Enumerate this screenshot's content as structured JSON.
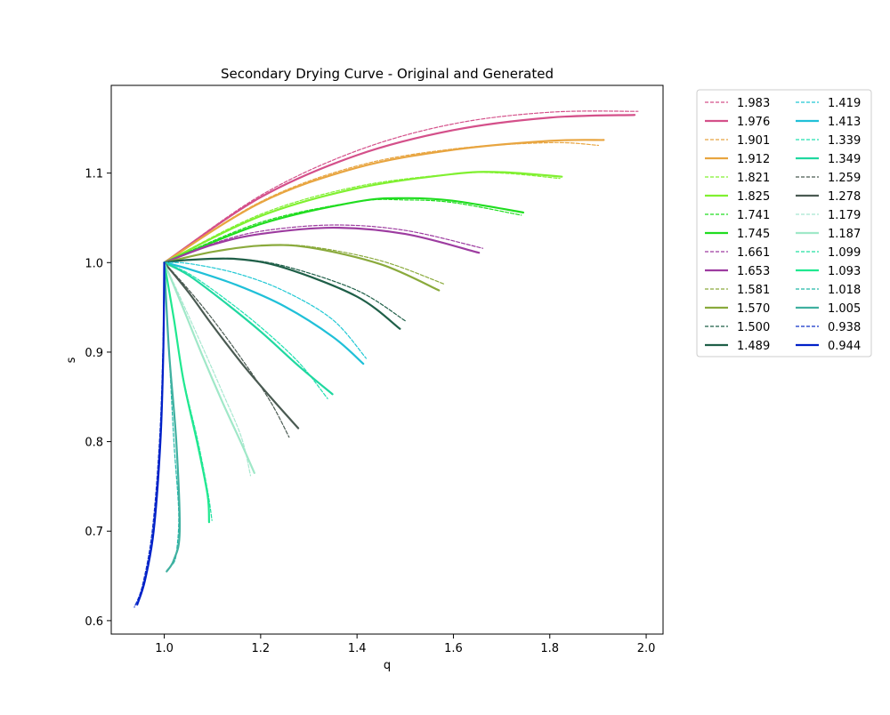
{
  "chart_data": {
    "type": "line",
    "title": "Secondary Drying Curve - Original and Generated",
    "xlabel": "q",
    "ylabel": "s",
    "xlim": [
      0.89,
      2.035
    ],
    "ylim": [
      0.585,
      1.198
    ],
    "xticks": [
      "1.0",
      "1.2",
      "1.4",
      "1.6",
      "1.8",
      "2.0"
    ],
    "yticks": [
      "0.6",
      "0.7",
      "0.8",
      "0.9",
      "1.0",
      "1.1"
    ],
    "grid": false,
    "legend": {
      "placement": "outside-right",
      "columns": 2
    },
    "series": [
      {
        "name": "1.983",
        "style": "dashed",
        "color": "#d4508a",
        "x": [
          1.0,
          1.2,
          1.4,
          1.6,
          1.8,
          1.983
        ],
        "y": [
          1.0,
          1.075,
          1.125,
          1.155,
          1.168,
          1.169
        ]
      },
      {
        "name": "1.976",
        "style": "solid",
        "color": "#d4508a",
        "x": [
          1.0,
          1.2,
          1.4,
          1.6,
          1.8,
          1.976
        ],
        "y": [
          1.0,
          1.073,
          1.12,
          1.148,
          1.162,
          1.165
        ]
      },
      {
        "name": "1.901",
        "style": "dashed",
        "color": "#e8a540",
        "x": [
          1.0,
          1.2,
          1.4,
          1.6,
          1.8,
          1.901
        ],
        "y": [
          1.0,
          1.068,
          1.108,
          1.127,
          1.134,
          1.131
        ]
      },
      {
        "name": "1.912",
        "style": "solid",
        "color": "#e8a540",
        "x": [
          1.0,
          1.2,
          1.4,
          1.6,
          1.8,
          1.912
        ],
        "y": [
          1.0,
          1.067,
          1.106,
          1.126,
          1.136,
          1.137
        ]
      },
      {
        "name": "1.821",
        "style": "dashed",
        "color": "#80f030",
        "x": [
          1.0,
          1.2,
          1.4,
          1.6,
          1.7,
          1.821
        ],
        "y": [
          1.0,
          1.054,
          1.085,
          1.099,
          1.1,
          1.094
        ]
      },
      {
        "name": "1.825",
        "style": "solid",
        "color": "#80f030",
        "x": [
          1.0,
          1.2,
          1.4,
          1.6,
          1.7,
          1.825
        ],
        "y": [
          1.0,
          1.052,
          1.083,
          1.099,
          1.101,
          1.096
        ]
      },
      {
        "name": "1.741",
        "style": "dashed",
        "color": "#20dd20",
        "x": [
          1.0,
          1.2,
          1.4,
          1.5,
          1.6,
          1.741
        ],
        "y": [
          1.0,
          1.045,
          1.068,
          1.07,
          1.067,
          1.053
        ]
      },
      {
        "name": "1.745",
        "style": "solid",
        "color": "#20dd20",
        "x": [
          1.0,
          1.2,
          1.4,
          1.5,
          1.6,
          1.745
        ],
        "y": [
          1.0,
          1.043,
          1.068,
          1.072,
          1.069,
          1.056
        ]
      },
      {
        "name": "1.661",
        "style": "dashed",
        "color": "#9d3ca0",
        "x": [
          1.0,
          1.1,
          1.2,
          1.35,
          1.5,
          1.661
        ],
        "y": [
          1.0,
          1.021,
          1.035,
          1.042,
          1.036,
          1.016
        ]
      },
      {
        "name": "1.653",
        "style": "solid",
        "color": "#9d3ca0",
        "x": [
          1.0,
          1.1,
          1.2,
          1.35,
          1.5,
          1.653
        ],
        "y": [
          1.0,
          1.02,
          1.032,
          1.039,
          1.032,
          1.011
        ]
      },
      {
        "name": "1.581",
        "style": "dashed",
        "color": "#8aaa3c",
        "x": [
          1.0,
          1.1,
          1.2,
          1.3,
          1.45,
          1.581
        ],
        "y": [
          1.0,
          1.012,
          1.019,
          1.018,
          1.002,
          0.976
        ]
      },
      {
        "name": "1.570",
        "style": "solid",
        "color": "#8aaa3c",
        "x": [
          1.0,
          1.1,
          1.2,
          1.3,
          1.45,
          1.57
        ],
        "y": [
          1.0,
          1.012,
          1.019,
          1.017,
          0.998,
          0.969
        ]
      },
      {
        "name": "1.500",
        "style": "dashed",
        "color": "#1f5f48",
        "x": [
          1.0,
          1.05,
          1.15,
          1.25,
          1.4,
          1.5
        ],
        "y": [
          1.0,
          1.003,
          1.004,
          0.996,
          0.969,
          0.935
        ]
      },
      {
        "name": "1.489",
        "style": "solid",
        "color": "#1f5f48",
        "x": [
          1.0,
          1.05,
          1.15,
          1.25,
          1.4,
          1.489
        ],
        "y": [
          1.0,
          1.003,
          1.004,
          0.994,
          0.962,
          0.926
        ]
      },
      {
        "name": "1.419",
        "style": "dashed",
        "color": "#20c8d4",
        "x": [
          1.0,
          1.05,
          1.15,
          1.25,
          1.35,
          1.419
        ],
        "y": [
          1.0,
          0.999,
          0.988,
          0.968,
          0.936,
          0.893
        ]
      },
      {
        "name": "1.413",
        "style": "solid",
        "color": "#20c0d8",
        "x": [
          1.0,
          1.05,
          1.15,
          1.25,
          1.35,
          1.413
        ],
        "y": [
          1.0,
          0.993,
          0.975,
          0.951,
          0.917,
          0.887
        ]
      },
      {
        "name": "1.339",
        "style": "dashed",
        "color": "#20e0b0",
        "x": [
          1.0,
          1.05,
          1.12,
          1.2,
          1.28,
          1.339
        ],
        "y": [
          1.0,
          0.988,
          0.962,
          0.928,
          0.888,
          0.848
        ]
      },
      {
        "name": "1.349",
        "style": "solid",
        "color": "#20d8a0",
        "x": [
          1.0,
          1.05,
          1.12,
          1.2,
          1.28,
          1.349
        ],
        "y": [
          1.0,
          0.986,
          0.958,
          0.923,
          0.884,
          0.853
        ]
      },
      {
        "name": "1.259",
        "style": "dashed",
        "color": "#4a5a52",
        "x": [
          1.0,
          1.05,
          1.1,
          1.16,
          1.22,
          1.259
        ],
        "y": [
          1.0,
          0.97,
          0.937,
          0.893,
          0.845,
          0.805
        ]
      },
      {
        "name": "1.278",
        "style": "solid",
        "color": "#4a5a52",
        "x": [
          1.0,
          1.05,
          1.1,
          1.16,
          1.22,
          1.278
        ],
        "y": [
          1.0,
          0.967,
          0.93,
          0.888,
          0.85,
          0.815
        ]
      },
      {
        "name": "1.179",
        "style": "dashed",
        "color": "#a8e8d0",
        "x": [
          1.0,
          1.04,
          1.08,
          1.12,
          1.16,
          1.179
        ],
        "y": [
          1.0,
          0.953,
          0.905,
          0.856,
          0.805,
          0.762
        ]
      },
      {
        "name": "1.187",
        "style": "solid",
        "color": "#a0e8c8",
        "x": [
          1.0,
          1.04,
          1.08,
          1.12,
          1.16,
          1.187
        ],
        "y": [
          1.0,
          0.948,
          0.895,
          0.845,
          0.798,
          0.765
        ]
      },
      {
        "name": "1.099",
        "style": "dashed",
        "color": "#20e0a0",
        "x": [
          1.0,
          1.02,
          1.04,
          1.07,
          1.09,
          1.099
        ],
        "y": [
          1.0,
          0.937,
          0.87,
          0.8,
          0.745,
          0.712
        ]
      },
      {
        "name": "1.093",
        "style": "solid",
        "color": "#20e890",
        "x": [
          1.0,
          1.02,
          1.04,
          1.07,
          1.09,
          1.093
        ],
        "y": [
          1.0,
          0.937,
          0.868,
          0.795,
          0.74,
          0.71
        ]
      },
      {
        "name": "1.018",
        "style": "dashed",
        "color": "#20b8a8",
        "x": [
          1.0,
          1.01,
          1.02,
          1.03,
          1.025,
          1.018
        ],
        "y": [
          1.0,
          0.9,
          0.8,
          0.72,
          0.675,
          0.663
        ]
      },
      {
        "name": "1.005",
        "style": "solid",
        "color": "#40b0a0",
        "x": [
          1.0,
          1.01,
          1.025,
          1.032,
          1.02,
          1.005
        ],
        "y": [
          1.0,
          0.9,
          0.8,
          0.7,
          0.668,
          0.655
        ]
      },
      {
        "name": "0.938",
        "style": "dashed",
        "color": "#1030c8",
        "x": [
          1.0,
          0.997,
          0.99,
          0.975,
          0.955,
          0.938
        ],
        "y": [
          1.0,
          0.9,
          0.8,
          0.7,
          0.64,
          0.615
        ]
      },
      {
        "name": "0.944",
        "style": "solid",
        "color": "#0020c8",
        "x": [
          1.0,
          0.998,
          0.992,
          0.978,
          0.96,
          0.944
        ],
        "y": [
          1.0,
          0.9,
          0.8,
          0.7,
          0.645,
          0.618
        ]
      }
    ]
  }
}
